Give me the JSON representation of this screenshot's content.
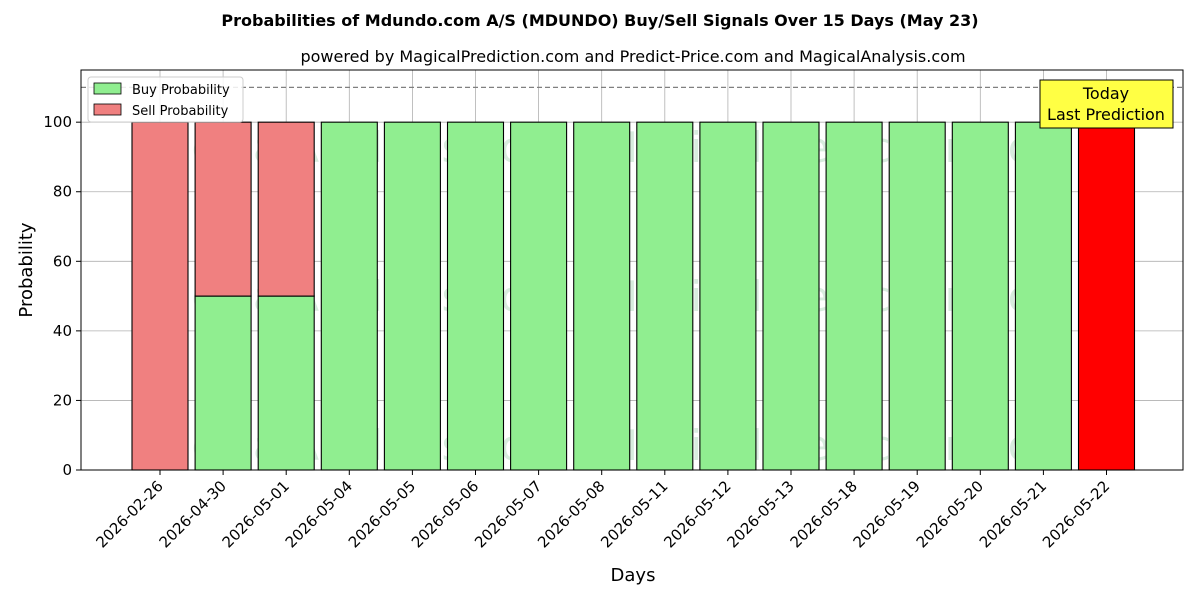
{
  "chart_data": {
    "type": "bar",
    "stacked": true,
    "title": "Probabilities of Mdundo.com A/S (MDUNDO) Buy/Sell Signals Over 15 Days (May 23)",
    "subtitle": "powered by MagicalPrediction.com and Predict-Price.com and MagicalAnalysis.com",
    "xlabel": "Days",
    "ylabel": "Probability",
    "ylim": [
      0,
      115
    ],
    "yticks": [
      0,
      20,
      40,
      60,
      80,
      100
    ],
    "grid": true,
    "legend_position": "top-left",
    "reference_line": 110,
    "categories": [
      "2026-02-26",
      "2026-04-30",
      "2026-05-01",
      "2026-05-04",
      "2026-05-05",
      "2026-05-06",
      "2026-05-07",
      "2026-05-08",
      "2026-05-11",
      "2026-05-12",
      "2026-05-13",
      "2026-05-18",
      "2026-05-19",
      "2026-05-20",
      "2026-05-21",
      "2026-05-22"
    ],
    "series": [
      {
        "name": "Buy Probability",
        "color": "#90ee90",
        "values": [
          0,
          50,
          50,
          100,
          100,
          100,
          100,
          100,
          100,
          100,
          100,
          100,
          100,
          100,
          100,
          0
        ]
      },
      {
        "name": "Sell Probability",
        "color": "#f08080",
        "values": [
          100,
          50,
          50,
          0,
          0,
          0,
          0,
          0,
          0,
          0,
          0,
          0,
          0,
          0,
          0,
          100
        ]
      }
    ],
    "highlight": {
      "index": 15,
      "color": "#ff0000"
    },
    "annotation": {
      "line1": "Today",
      "line2": "Last Prediction",
      "background": "#ffff44"
    },
    "watermarks": [
      "MagicalAnalysis.com",
      "MagicalPrediction.com"
    ]
  }
}
